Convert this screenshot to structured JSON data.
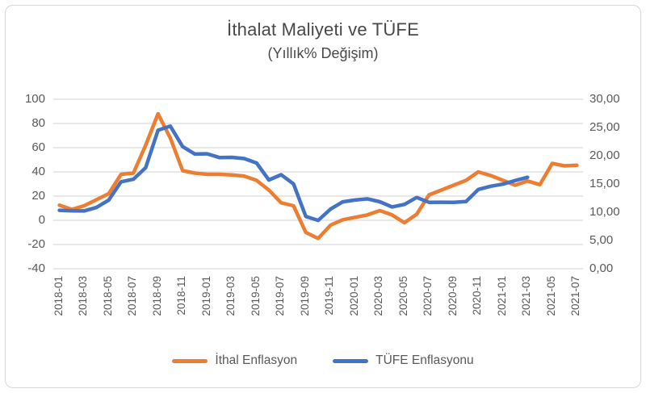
{
  "chart": {
    "title": "İthalat Maliyeti ve TÜFE",
    "subtitle": "(Yıllık% Değişim)",
    "colors": {
      "import_series": "#ED7D31",
      "cpi_series": "#4472C4",
      "gridline": "#D9D9D9",
      "axis_text": "#595959",
      "title_text": "#484848",
      "frame_border": "#D7D7D7"
    },
    "legend": [
      {
        "label": "İthal Enflasyon",
        "color": "#ED7D31"
      },
      {
        "label": "TÜFE Enflasyonu",
        "color": "#4472C4"
      }
    ]
  },
  "chart_data": {
    "type": "line",
    "title": "İthalat Maliyeti ve TÜFE",
    "subtitle": "(Yıllık% Değişim)",
    "grid": "horizontal",
    "legend_position": "bottom",
    "x": [
      "2018-01",
      "2018-02",
      "2018-03",
      "2018-04",
      "2018-05",
      "2018-06",
      "2018-07",
      "2018-08",
      "2018-09",
      "2018-10",
      "2018-11",
      "2018-12",
      "2019-01",
      "2019-02",
      "2019-03",
      "2019-04",
      "2019-05",
      "2019-06",
      "2019-07",
      "2019-08",
      "2019-09",
      "2019-10",
      "2019-11",
      "2019-12",
      "2020-01",
      "2020-02",
      "2020-03",
      "2020-04",
      "2020-05",
      "2020-06",
      "2020-07",
      "2020-08",
      "2020-09",
      "2020-10",
      "2020-11",
      "2020-12",
      "2021-01",
      "2021-02",
      "2021-03",
      "2021-04",
      "2021-05",
      "2021-06",
      "2021-07"
    ],
    "x_tick_labels": [
      "2018-01",
      "2018-03",
      "2018-05",
      "2018-07",
      "2018-09",
      "2018-11",
      "2019-01",
      "2019-03",
      "2019-05",
      "2019-07",
      "2019-09",
      "2019-11",
      "2020-01",
      "2020-03",
      "2020-05",
      "2020-07",
      "2020-09",
      "2020-11",
      "2021-01",
      "2021-03",
      "2021-05",
      "2021-07"
    ],
    "x_label_every": 2,
    "left_axis": {
      "min": -40,
      "max": 100,
      "step": 20,
      "ticks": [
        "100",
        "80",
        "60",
        "40",
        "20",
        "0",
        "-20",
        "-40"
      ],
      "tick_values": [
        100,
        80,
        60,
        40,
        20,
        0,
        -20,
        -40
      ]
    },
    "right_axis": {
      "min": 0,
      "max": 30,
      "step": 5,
      "ticks": [
        "30,00",
        "25,00",
        "20,00",
        "15,00",
        "10,00",
        "5,00",
        "0,00"
      ],
      "tick_values": [
        30,
        25,
        20,
        15,
        10,
        5,
        0
      ]
    },
    "series": [
      {
        "name": "İthal Enflasyon",
        "axis": "left",
        "color": "#ED7D31",
        "values": [
          12.5,
          9,
          12,
          17,
          22,
          38,
          39,
          62,
          88,
          68,
          41,
          39,
          38,
          38,
          37.5,
          36.5,
          33,
          25,
          14.5,
          12,
          -10,
          -15,
          -4,
          0.5,
          2.5,
          4.5,
          8,
          4.5,
          -2,
          5,
          21,
          25,
          29,
          33,
          40,
          37,
          33,
          29,
          32.5,
          29.5,
          47,
          45,
          45.5
        ]
      },
      {
        "name": "TÜFE Enflasyonu",
        "axis": "right",
        "color": "#4472C4",
        "values": [
          10.35,
          10.26,
          10.23,
          10.85,
          12.15,
          15.39,
          15.85,
          17.9,
          24.52,
          25.24,
          21.62,
          20.3,
          20.35,
          19.67,
          19.71,
          19.5,
          18.71,
          15.72,
          16.65,
          15.01,
          9.26,
          8.55,
          10.56,
          11.84,
          12.15,
          12.37,
          11.86,
          10.94,
          11.39,
          12.62,
          11.76,
          11.77,
          11.75,
          11.89,
          14.03,
          14.6,
          14.97,
          15.61,
          16.19,
          null,
          null,
          null,
          null
        ]
      }
    ]
  }
}
